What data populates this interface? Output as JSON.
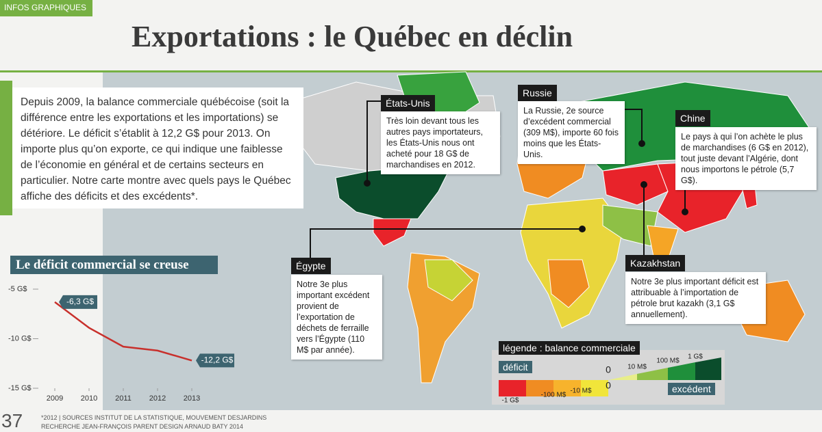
{
  "tag": "INFOS GRAPHIQUES",
  "header": {
    "title": "Exportations : le Québec en déclin"
  },
  "intro": "Depuis 2009, la balance commerciale québécoise (soit la différence entre les exportations et les importations) se détériore. Le déficit s’établit à 12,2 G$ pour 2013. On importe plus qu’on exporte, ce qui indique une faiblesse de l’économie en général et de certains secteurs en particulier. Notre carte montre avec quels pays le Québec affiche des déficits et des excédents*.",
  "callouts": [
    {
      "label": "États-Unis",
      "text": "Très loin devant tous les autres pays importateurs, les États-Unis nous ont acheté pour 18 G$ de marchandises en 2012."
    },
    {
      "label": "Russie",
      "text": "La Russie, 2e source d’excédent commercial (309 M$), importe 60 fois moins que les États-Unis."
    },
    {
      "label": "Chine",
      "text": "Le pays à qui l’on achète le plus de marchandises (6 G$ en 2012), tout juste devant l’Algérie, dont nous importons le pétrole (5,7 G$)."
    },
    {
      "label": "Égypte",
      "text": "Notre 3e plus important excédent provient de l’exportation de déchets de ferraille vers l’Égypte (110 M$ par année)."
    },
    {
      "label": "Kazakhstan",
      "text": "Notre 3e plus important déficit est attribuable à l’importation de pétrole brut kazakh (3,1 G$ annuellement)."
    }
  ],
  "legend": {
    "title": "légende : balance commerciale",
    "deficit": "déficit",
    "surplus": "excédent",
    "scale": [
      "-1 G$",
      "-100 M$",
      "-10 M$",
      "0",
      "0",
      "10 M$",
      "100 M$",
      "1 G$"
    ]
  },
  "chart_data": {
    "type": "line",
    "title": "Le déficit commercial se creuse",
    "x": [
      2009,
      2010,
      2011,
      2012,
      2013
    ],
    "values": [
      -6.3,
      -8.9,
      -10.8,
      -11.2,
      -12.2
    ],
    "value_labels": [
      "-6,3 G$",
      null,
      null,
      null,
      "-12,2 G$"
    ],
    "color": "#c8302c",
    "xlim": [
      2007.8,
      2013.6
    ],
    "xticks": [
      2009,
      2010,
      2011,
      2012,
      2013
    ],
    "ylim": [
      -15,
      -5
    ],
    "yticks": [
      {
        "value": -5,
        "label": "-5  G$"
      },
      {
        "value": -10,
        "label": "-10 G$"
      },
      {
        "value": -15,
        "label": "-15 G$"
      }
    ]
  },
  "footer": {
    "page": "37",
    "sources": "*2012 | SOURCES INSTITUT DE LA STATISTIQUE, MOUVEMENT DESJARDINS",
    "credits": "RECHERCHE JEAN-FRANÇOIS PARENT DESIGN ARNAUD BATY 2014"
  }
}
